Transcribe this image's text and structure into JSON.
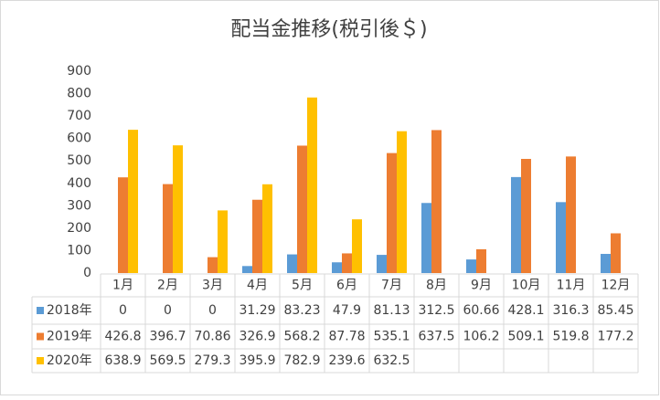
{
  "chart_data": {
    "type": "bar",
    "title": "配当金推移(税引後＄)",
    "categories": [
      "1月",
      "2月",
      "3月",
      "4月",
      "5月",
      "6月",
      "7月",
      "8月",
      "9月",
      "10月",
      "11月",
      "12月"
    ],
    "series": [
      {
        "name": "2018年",
        "color": "#5b9bd5",
        "values": [
          0,
          0,
          0,
          31.29,
          83.23,
          47.9,
          81.13,
          312.5,
          60.66,
          428.1,
          316.3,
          85.45
        ]
      },
      {
        "name": "2019年",
        "color": "#ed7d31",
        "values": [
          426.8,
          396.7,
          70.86,
          326.9,
          568.2,
          87.78,
          535.1,
          637.5,
          106.2,
          509.1,
          519.8,
          177.2
        ]
      },
      {
        "name": "2020年",
        "color": "#ffc000",
        "values": [
          638.9,
          569.5,
          279.3,
          395.9,
          782.9,
          239.6,
          632.5,
          null,
          null,
          null,
          null,
          null
        ]
      }
    ],
    "ylim": [
      0,
      900
    ],
    "yticks": [
      0,
      100,
      200,
      300,
      400,
      500,
      600,
      700,
      800,
      900
    ],
    "grid": false
  }
}
